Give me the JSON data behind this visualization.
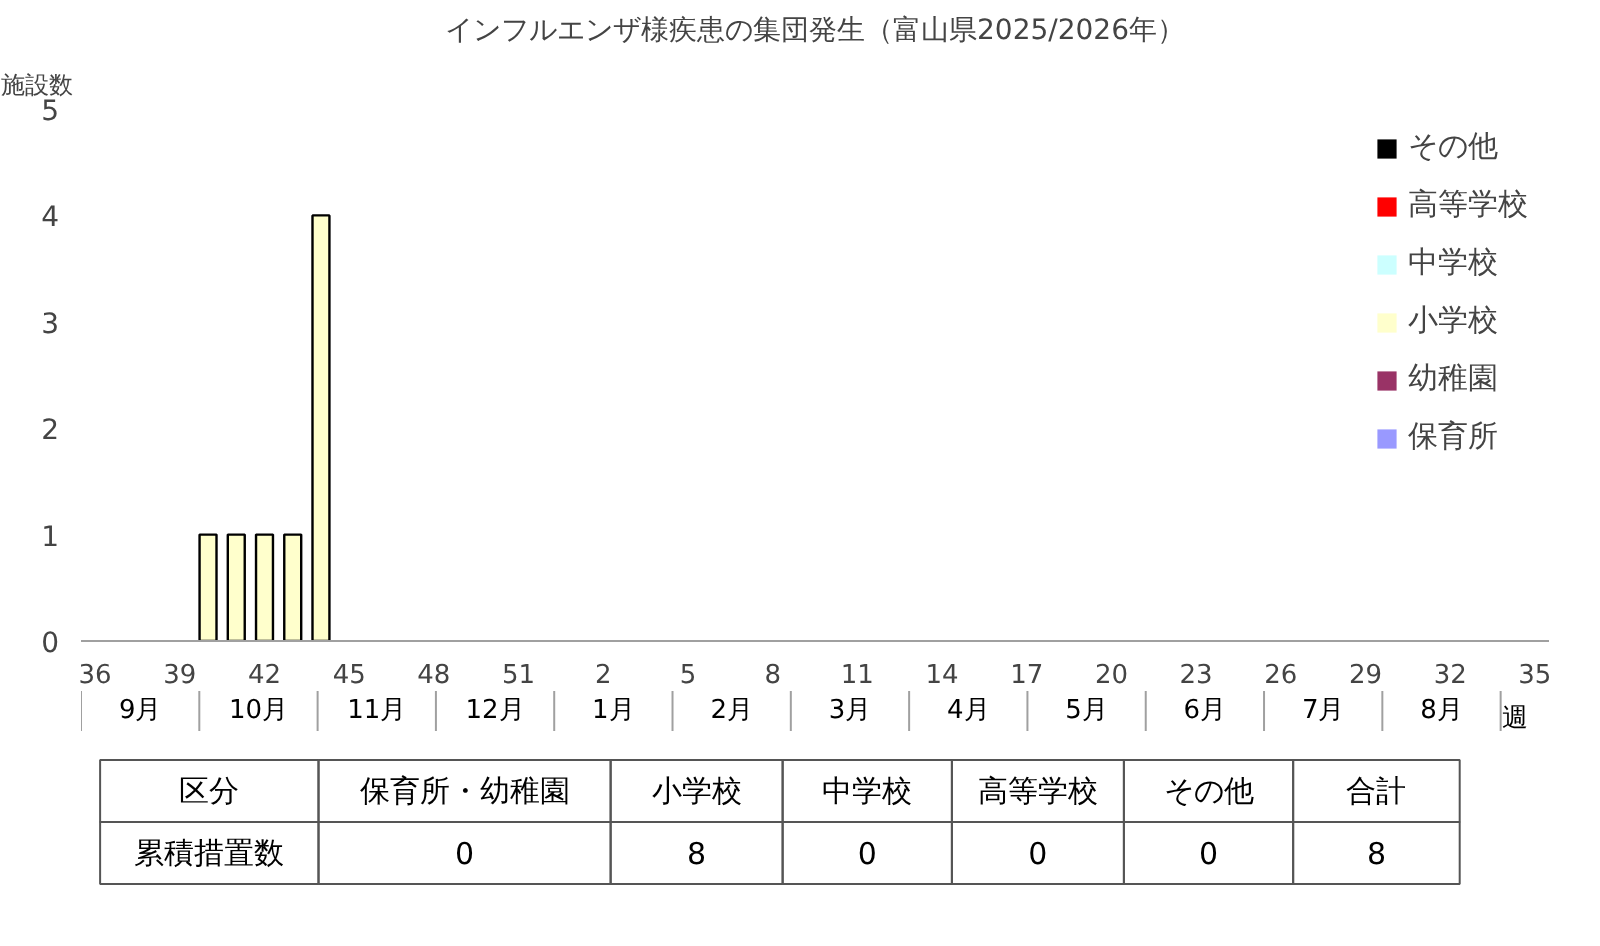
{
  "chart_data": {
    "type": "bar",
    "title": "インフルエンザ様疾患の集団発生（富山県2025/2026年）",
    "ylabel": "施設数",
    "xlabel": "週",
    "categories": [
      "36",
      null,
      null,
      "39",
      null,
      null,
      "42",
      null,
      null,
      "45",
      null,
      null,
      "48",
      null,
      null,
      "51",
      null,
      null,
      "2",
      null,
      null,
      "5",
      null,
      null,
      "8",
      null,
      null,
      "11",
      null,
      null,
      "14",
      null,
      null,
      "17",
      null,
      null,
      "20",
      null,
      null,
      "23",
      null,
      null,
      "26",
      null,
      null,
      "29",
      null,
      null,
      "32",
      null,
      null,
      "35"
    ],
    "series": [
      {
        "name": "保育所",
        "color": "#9999ff",
        "values": [
          0,
          0,
          0,
          0,
          0,
          0,
          0,
          0,
          0,
          0,
          0,
          0,
          0,
          0,
          0,
          0,
          0,
          0,
          0,
          0,
          0,
          0,
          0,
          0,
          0,
          0,
          0,
          0,
          0,
          0,
          0,
          0,
          0,
          0,
          0,
          0,
          0,
          0,
          0,
          0,
          0,
          0,
          0,
          0,
          0,
          0,
          0,
          0,
          0,
          0,
          0,
          0
        ]
      },
      {
        "name": "幼稚園",
        "color": "#993366",
        "values": [
          0,
          0,
          0,
          0,
          0,
          0,
          0,
          0,
          0,
          0,
          0,
          0,
          0,
          0,
          0,
          0,
          0,
          0,
          0,
          0,
          0,
          0,
          0,
          0,
          0,
          0,
          0,
          0,
          0,
          0,
          0,
          0,
          0,
          0,
          0,
          0,
          0,
          0,
          0,
          0,
          0,
          0,
          0,
          0,
          0,
          0,
          0,
          0,
          0,
          0,
          0,
          0
        ]
      },
      {
        "name": "小学校",
        "color": "#ffffcc",
        "values": [
          0,
          0,
          0,
          0,
          1,
          1,
          1,
          1,
          4,
          0,
          0,
          0,
          0,
          0,
          0,
          0,
          0,
          0,
          0,
          0,
          0,
          0,
          0,
          0,
          0,
          0,
          0,
          0,
          0,
          0,
          0,
          0,
          0,
          0,
          0,
          0,
          0,
          0,
          0,
          0,
          0,
          0,
          0,
          0,
          0,
          0,
          0,
          0,
          0,
          0,
          0,
          0
        ]
      },
      {
        "name": "中学校",
        "color": "#ccffff",
        "values": [
          0,
          0,
          0,
          0,
          0,
          0,
          0,
          0,
          0,
          0,
          0,
          0,
          0,
          0,
          0,
          0,
          0,
          0,
          0,
          0,
          0,
          0,
          0,
          0,
          0,
          0,
          0,
          0,
          0,
          0,
          0,
          0,
          0,
          0,
          0,
          0,
          0,
          0,
          0,
          0,
          0,
          0,
          0,
          0,
          0,
          0,
          0,
          0,
          0,
          0,
          0,
          0
        ]
      },
      {
        "name": "高等学校",
        "color": "#ff0000",
        "values": [
          0,
          0,
          0,
          0,
          0,
          0,
          0,
          0,
          0,
          0,
          0,
          0,
          0,
          0,
          0,
          0,
          0,
          0,
          0,
          0,
          0,
          0,
          0,
          0,
          0,
          0,
          0,
          0,
          0,
          0,
          0,
          0,
          0,
          0,
          0,
          0,
          0,
          0,
          0,
          0,
          0,
          0,
          0,
          0,
          0,
          0,
          0,
          0,
          0,
          0,
          0,
          0
        ]
      },
      {
        "name": "その他",
        "color": "#000000",
        "values": [
          0,
          0,
          0,
          0,
          0,
          0,
          0,
          0,
          0,
          0,
          0,
          0,
          0,
          0,
          0,
          0,
          0,
          0,
          0,
          0,
          0,
          0,
          0,
          0,
          0,
          0,
          0,
          0,
          0,
          0,
          0,
          0,
          0,
          0,
          0,
          0,
          0,
          0,
          0,
          0,
          0,
          0,
          0,
          0,
          0,
          0,
          0,
          0,
          0,
          0,
          0,
          0
        ]
      }
    ],
    "ylim": [
      0,
      5
    ],
    "yticks": [
      0,
      1,
      2,
      3,
      4,
      5
    ],
    "grid": false,
    "legend": "top right",
    "annotations": [
      "9月",
      "10月",
      "11月",
      "12月",
      "1月",
      "2月",
      "3月",
      "4月",
      "5月",
      "6月",
      "7月",
      "8月",
      "区分",
      "保育所・幼稚園",
      "小学校",
      "中学校",
      "高等学校",
      "その他",
      "合計",
      "累積措置数",
      "0",
      "8",
      "0",
      "0",
      "0",
      "8"
    ]
  }
}
